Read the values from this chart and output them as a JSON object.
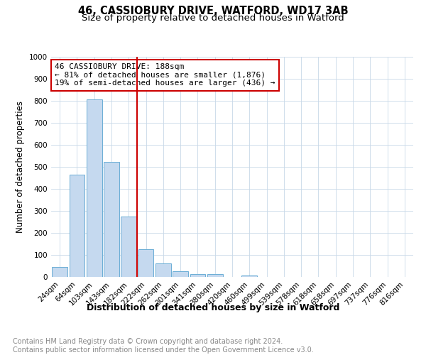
{
  "title": "46, CASSIOBURY DRIVE, WATFORD, WD17 3AB",
  "subtitle": "Size of property relative to detached houses in Watford",
  "xlabel": "Distribution of detached houses by size in Watford",
  "ylabel": "Number of detached properties",
  "categories": [
    "24sqm",
    "64sqm",
    "103sqm",
    "143sqm",
    "182sqm",
    "222sqm",
    "262sqm",
    "301sqm",
    "341sqm",
    "380sqm",
    "420sqm",
    "460sqm",
    "499sqm",
    "539sqm",
    "578sqm",
    "618sqm",
    "658sqm",
    "697sqm",
    "737sqm",
    "776sqm",
    "816sqm"
  ],
  "values": [
    46,
    463,
    808,
    521,
    275,
    125,
    60,
    25,
    12,
    12,
    0,
    8,
    0,
    0,
    0,
    0,
    0,
    0,
    0,
    0,
    0
  ],
  "bar_color": "#c5d9ef",
  "bar_edge_color": "#6baed6",
  "vline_x": 4.5,
  "vline_color": "#cc0000",
  "annotation_text": "46 CASSIOBURY DRIVE: 188sqm\n← 81% of detached houses are smaller (1,876)\n19% of semi-detached houses are larger (436) →",
  "annotation_box_color": "#cc0000",
  "annotation_bg": "#ffffff",
  "ylim": [
    0,
    1000
  ],
  "yticks": [
    0,
    100,
    200,
    300,
    400,
    500,
    600,
    700,
    800,
    900,
    1000
  ],
  "footer_text": "Contains HM Land Registry data © Crown copyright and database right 2024.\nContains public sector information licensed under the Open Government Licence v3.0.",
  "bg_color": "#ffffff",
  "grid_color": "#c8d8e8",
  "title_fontsize": 10.5,
  "subtitle_fontsize": 9.5,
  "xlabel_fontsize": 9,
  "ylabel_fontsize": 8.5,
  "tick_fontsize": 7.5,
  "annotation_fontsize": 8,
  "footer_fontsize": 7
}
